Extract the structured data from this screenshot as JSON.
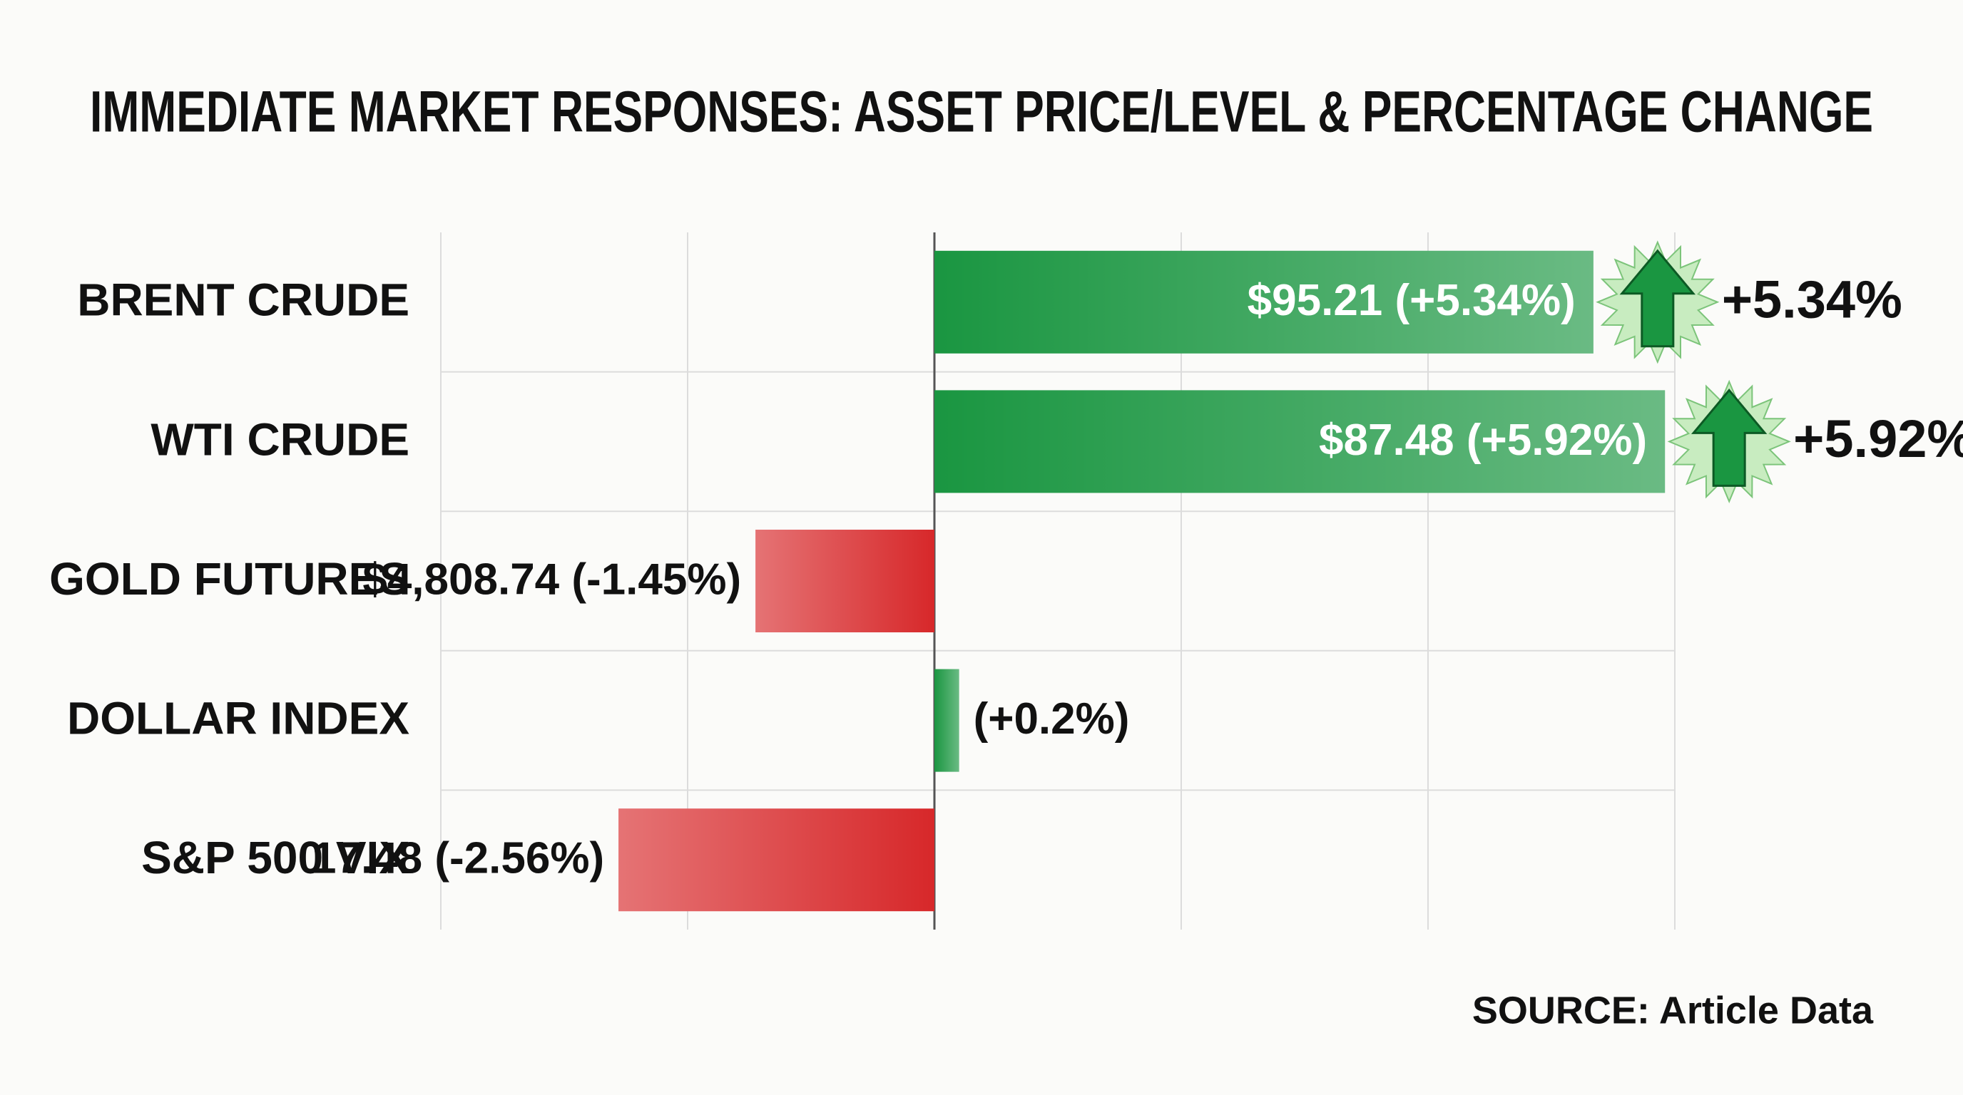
{
  "chart_data": {
    "type": "hbar",
    "title": "IMMEDIATE MARKET RESPONSES: ASSET PRICE/LEVEL & PERCENTAGE CHANGE",
    "categories": [
      "BRENT CRUDE",
      "WTI CRUDE",
      "GOLD FUTURES",
      "DOLLAR INDEX",
      "S&P 500 VIX"
    ],
    "values": [
      5.34,
      5.92,
      -1.45,
      0.2,
      -2.56
    ],
    "value_labels": [
      "$95.21 (+5.34%)",
      "$87.48 (+5.92%)",
      "$4,808.74 (-1.45%)",
      "(+0.2%)",
      "17.48 (-2.56%)"
    ],
    "outer_labels": [
      "+5.34%",
      "+5.92%",
      null,
      null,
      null
    ],
    "positive_color": "#1a9641",
    "negative_color": "#d7282a",
    "xlim": [
      -4,
      6
    ],
    "xticks": [
      -4,
      -2,
      0,
      2,
      4,
      6
    ],
    "grid": true,
    "source": "SOURCE: Article Data"
  }
}
